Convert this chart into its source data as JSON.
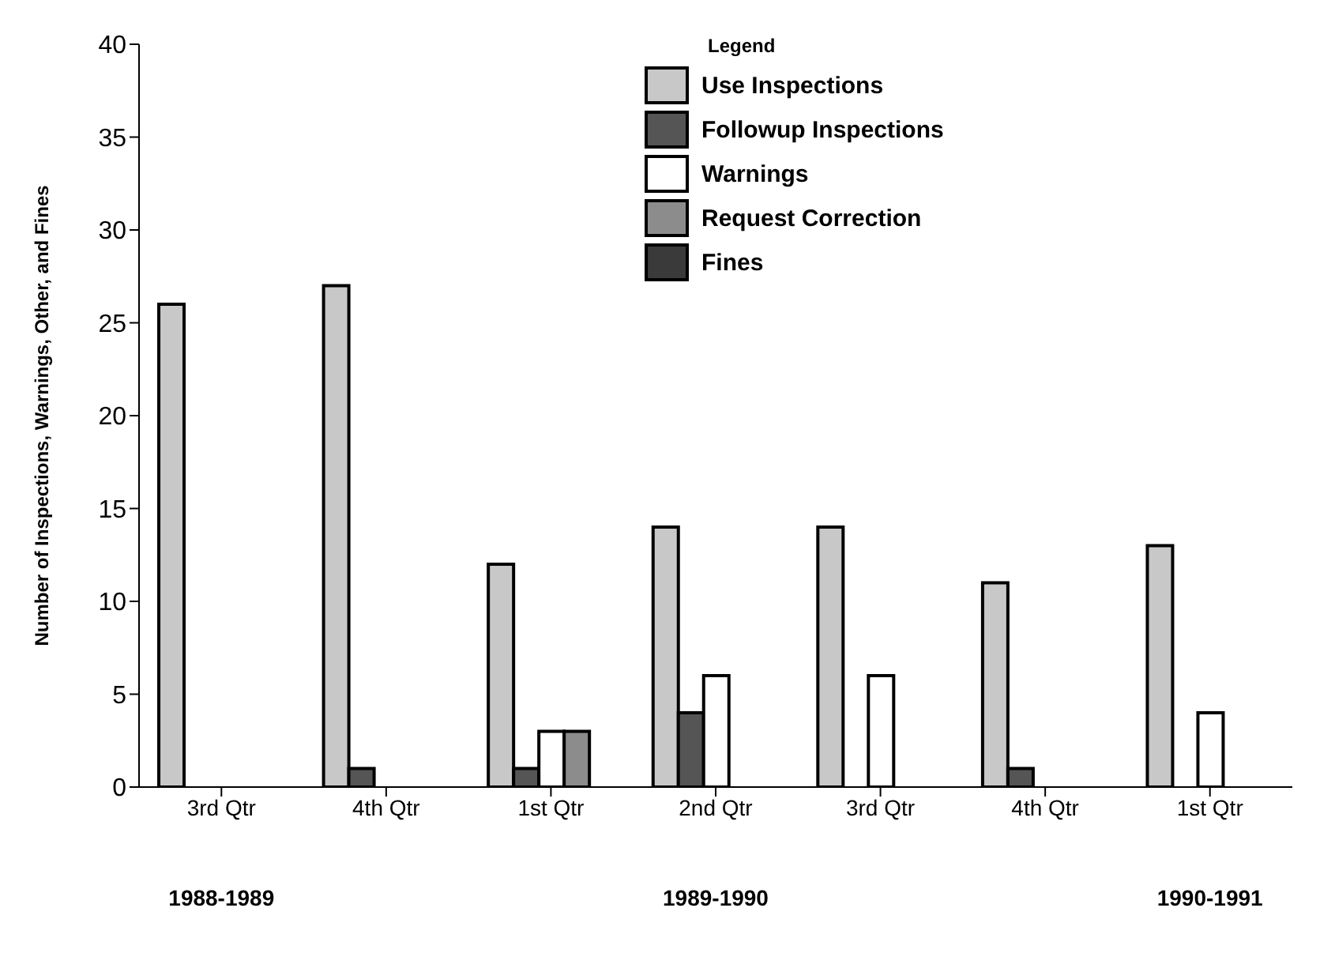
{
  "chart_data": {
    "type": "bar",
    "ylabel": "Number of Inspections, Warnings, Other, and Fines",
    "legend_title": "Legend",
    "legend": "top right",
    "categories": [
      "3rd Qtr",
      "4th Qtr",
      "1st Qtr",
      "2nd Qtr",
      "3rd Qtr",
      "4th Qtr",
      "1st Qtr"
    ],
    "ylim": [
      0,
      40
    ],
    "yticks": [
      0,
      5,
      10,
      15,
      20,
      25,
      30,
      35,
      40
    ],
    "series": [
      {
        "name": "Use Inspections",
        "color": "#c8c8c8",
        "values": [
          26,
          27,
          12,
          14,
          14,
          11,
          13
        ]
      },
      {
        "name": "Followup Inspections",
        "color": "#555555",
        "values": [
          0,
          1,
          1,
          4,
          0,
          1,
          0
        ]
      },
      {
        "name": "Warnings",
        "color": "#ffffff",
        "values": [
          0,
          0,
          3,
          6,
          6,
          0,
          4
        ]
      },
      {
        "name": "Request Correction",
        "color": "#8c8c8c",
        "values": [
          0,
          0,
          3,
          0,
          0,
          0,
          0
        ]
      },
      {
        "name": "Fines",
        "color": "#3a3a3a",
        "values": [
          0,
          0,
          0,
          0,
          0,
          0,
          0
        ]
      }
    ],
    "annotations": [
      "1988-1989",
      "1989-1990",
      "1990-1991"
    ]
  }
}
